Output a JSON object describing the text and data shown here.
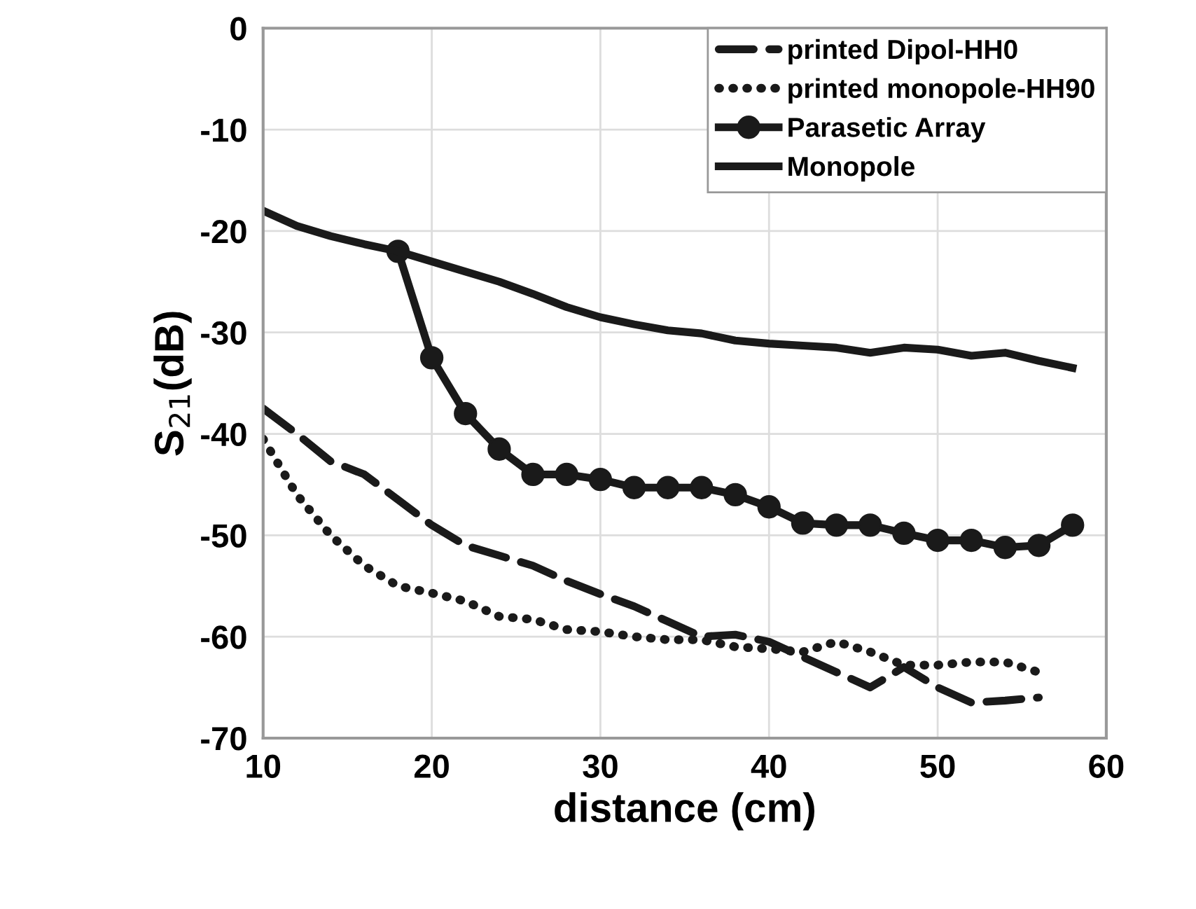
{
  "chart_data": {
    "type": "line",
    "xlabel": "distance (cm)",
    "ylabel": "S$_{21}$(dB)",
    "xlim": [
      10,
      60
    ],
    "xticks": [
      10,
      20,
      30,
      40,
      50,
      60
    ],
    "ylim": [
      -70,
      0
    ],
    "yticks": [
      -70,
      -60,
      -50,
      -40,
      -30,
      -20,
      -10,
      0
    ],
    "grid": true,
    "legend": "top right",
    "series": [
      {
        "name": "printed Dipol-HH0",
        "color": "#1a1a1a",
        "line_style": "dashed",
        "marker": "none",
        "x": [
          10,
          12,
          14,
          16,
          18,
          20,
          22,
          24,
          26,
          28,
          30,
          32,
          34,
          36,
          38,
          40,
          42,
          44,
          46,
          48,
          50,
          52,
          54,
          56
        ],
        "values": [
          -37.5,
          -40,
          -42.7,
          -44,
          -46.5,
          -49,
          -51,
          -52,
          -53,
          -54.5,
          -55.8,
          -57,
          -58.5,
          -60,
          -59.8,
          -60.5,
          -62,
          -63.5,
          -65,
          -63,
          -65,
          -66.5,
          -66.3,
          -66
        ]
      },
      {
        "name": "printed monopole-HH90",
        "color": "#1a1a1a",
        "line_style": "dotted",
        "marker": "none",
        "x": [
          10,
          12,
          14,
          16,
          18,
          20,
          22,
          24,
          26,
          28,
          30,
          32,
          34,
          36,
          38,
          40,
          42,
          44,
          46,
          48,
          50,
          52,
          54,
          56
        ],
        "values": [
          -40.5,
          -46,
          -50,
          -53,
          -55,
          -55.7,
          -56.5,
          -58,
          -58.3,
          -59.3,
          -59.5,
          -60,
          -60.3,
          -60.3,
          -61,
          -61.2,
          -61.5,
          -60.5,
          -61.5,
          -62.8,
          -62.8,
          -62.5,
          -62.5,
          -63.5
        ]
      },
      {
        "name": "Parasetic Array",
        "color": "#1a1a1a",
        "line_style": "solid",
        "marker": "circle",
        "x": [
          18,
          20,
          22,
          24,
          26,
          28,
          30,
          32,
          34,
          36,
          38,
          40,
          42,
          44,
          46,
          48,
          50,
          52,
          54,
          56,
          58
        ],
        "values": [
          -22,
          -32.5,
          -38,
          -41.5,
          -44,
          -44,
          -44.5,
          -45.3,
          -45.3,
          -45.3,
          -46,
          -47.2,
          -48.8,
          -49,
          -49,
          -49.8,
          -50.5,
          -50.5,
          -51.2,
          -51,
          -49
        ]
      },
      {
        "name": "Monopole",
        "color": "#1a1a1a",
        "line_style": "solid",
        "marker": "none",
        "x": [
          10,
          12,
          14,
          16,
          18,
          20,
          22,
          24,
          26,
          28,
          30,
          32,
          34,
          36,
          38,
          40,
          42,
          44,
          46,
          48,
          50,
          52,
          54,
          56,
          58
        ],
        "values": [
          -18,
          -19.5,
          -20.5,
          -21.3,
          -22,
          -23,
          -24,
          -25,
          -26.2,
          -27.5,
          -28.5,
          -29.2,
          -29.8,
          -30.1,
          -30.8,
          -31.1,
          -31.3,
          -31.5,
          -32,
          -31.5,
          -31.7,
          -32.3,
          -32,
          -32.8,
          -33.5
        ]
      }
    ]
  }
}
